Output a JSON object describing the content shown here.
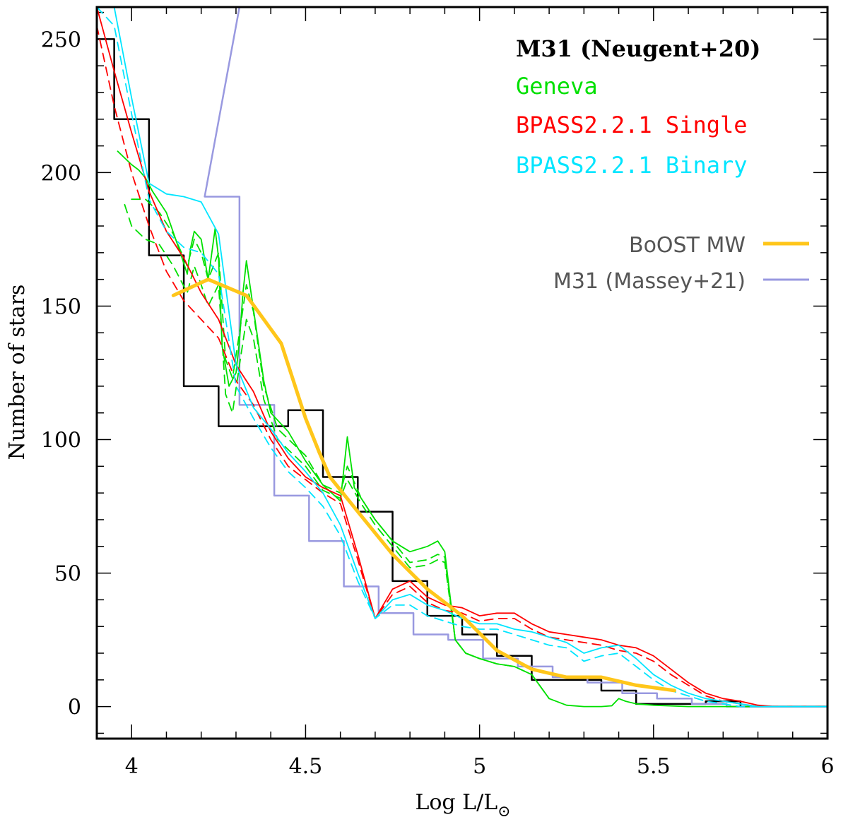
{
  "chart_data": {
    "type": "line",
    "xlabel": "Log L/L",
    "xlabel_sub": "⊙",
    "ylabel": "Number of stars",
    "xlim": [
      3.9,
      6.0
    ],
    "ylim": [
      -12,
      262
    ],
    "xticks": [
      4,
      4.5,
      5,
      5.5,
      6
    ],
    "xtick_labels": [
      "4",
      "4.5",
      "5",
      "5.5",
      "6"
    ],
    "yticks": [
      0,
      50,
      100,
      150,
      200,
      250
    ],
    "ytick_labels": [
      "0",
      "50",
      "100",
      "150",
      "200",
      "250"
    ],
    "legend": [
      {
        "label": "M31 (Neugent+20)",
        "color": "#000000"
      },
      {
        "label": "Geneva",
        "color": "#00e000"
      },
      {
        "label": "BPASS2.2.1 Single",
        "color": "#ff0000"
      },
      {
        "label": "BPASS2.2.1 Binary",
        "color": "#00e5ff"
      },
      {
        "label": "BoOST MW",
        "color": "#ffc61a"
      },
      {
        "label": "M31 (Massey+21)",
        "color": "#9999e0"
      }
    ],
    "series": [
      {
        "name": "M31 (Neugent+20)",
        "color": "#000000",
        "style": "step",
        "width": 2.5,
        "bins": [
          [
            3.9,
            3.95,
            250
          ],
          [
            3.95,
            4.05,
            220
          ],
          [
            4.05,
            4.15,
            169
          ],
          [
            4.15,
            4.25,
            120
          ],
          [
            4.25,
            4.45,
            105
          ],
          [
            4.45,
            4.55,
            111
          ],
          [
            4.55,
            4.65,
            86
          ],
          [
            4.65,
            4.75,
            73
          ],
          [
            4.75,
            4.85,
            47
          ],
          [
            4.85,
            4.95,
            34
          ],
          [
            4.95,
            5.05,
            27
          ],
          [
            5.05,
            5.15,
            19
          ],
          [
            5.15,
            5.35,
            10
          ],
          [
            5.35,
            5.45,
            6
          ],
          [
            5.45,
            5.65,
            1
          ],
          [
            5.65,
            5.75,
            2
          ],
          [
            5.75,
            6.0,
            0
          ]
        ]
      },
      {
        "name": "M31 (Massey+21)",
        "color": "#9999e0",
        "style": "step",
        "width": 2.5,
        "bins": [
          [
            4.2,
            4.31,
            262
          ],
          [
            4.21,
            4.31,
            191
          ],
          [
            4.31,
            4.41,
            113
          ],
          [
            4.41,
            4.51,
            79
          ],
          [
            4.51,
            4.61,
            62
          ],
          [
            4.61,
            4.71,
            45
          ],
          [
            4.71,
            4.81,
            35
          ],
          [
            4.81,
            4.91,
            27
          ],
          [
            4.91,
            5.01,
            25
          ],
          [
            5.01,
            5.11,
            18
          ],
          [
            5.11,
            5.21,
            15
          ],
          [
            5.21,
            5.31,
            11
          ],
          [
            5.31,
            5.41,
            9
          ],
          [
            5.41,
            5.51,
            5
          ],
          [
            5.51,
            5.61,
            3
          ],
          [
            5.61,
            5.71,
            1
          ],
          [
            5.71,
            6.0,
            0
          ]
        ]
      },
      {
        "name": "BPASS2.2.1 Single",
        "color": "#ff0000",
        "style": "solid",
        "width": 1.8,
        "x": [
          3.9,
          3.95,
          4.0,
          4.05,
          4.1,
          4.15,
          4.2,
          4.25,
          4.3,
          4.35,
          4.4,
          4.45,
          4.5,
          4.55,
          4.6,
          4.65,
          4.7,
          4.75,
          4.8,
          4.85,
          4.9,
          4.95,
          5.0,
          5.05,
          5.1,
          5.15,
          5.2,
          5.25,
          5.3,
          5.35,
          5.4,
          5.45,
          5.5,
          5.55,
          5.6,
          5.65,
          5.7,
          5.75,
          5.8,
          5.85,
          5.9,
          6.0
        ],
        "y": [
          262,
          238,
          215,
          193,
          178,
          168,
          155,
          145,
          128,
          118,
          103,
          93,
          86,
          82,
          79,
          57,
          33,
          44,
          47,
          41,
          38,
          37,
          34,
          35,
          35,
          31,
          28,
          27,
          26,
          25,
          23,
          22,
          19,
          14,
          9,
          5,
          3,
          2,
          0.5,
          0,
          0,
          0
        ]
      },
      {
        "name": "BPASS2.2.1 Single (dashed)",
        "color": "#ff0000",
        "style": "dashed",
        "width": 1.8,
        "x": [
          3.9,
          3.95,
          4.0,
          4.05,
          4.1,
          4.15,
          4.2,
          4.25,
          4.3,
          4.35,
          4.4,
          4.45,
          4.5,
          4.55,
          4.6,
          4.65,
          4.7,
          4.75,
          4.8,
          4.85,
          4.9,
          4.95,
          5.0,
          5.05,
          5.1,
          5.15,
          5.2,
          5.25,
          5.3,
          5.35,
          5.4,
          5.45,
          5.5,
          5.55,
          5.6,
          5.65,
          5.7,
          5.75,
          5.8,
          5.85,
          6.0
        ],
        "y": [
          255,
          225,
          200,
          180,
          163,
          152,
          145,
          138,
          122,
          113,
          100,
          90,
          85,
          80,
          76,
          55,
          33,
          42,
          45,
          39,
          36,
          35,
          32,
          33,
          33,
          29,
          26,
          25,
          24,
          23,
          21,
          20,
          17,
          12,
          8,
          4,
          2,
          1,
          0,
          0,
          0
        ]
      },
      {
        "name": "BPASS2.2.1 Binary",
        "color": "#00e5ff",
        "style": "solid",
        "width": 1.8,
        "x": [
          3.9,
          3.95,
          4.0,
          4.05,
          4.1,
          4.15,
          4.2,
          4.25,
          4.3,
          4.35,
          4.4,
          4.45,
          4.5,
          4.55,
          4.6,
          4.65,
          4.7,
          4.75,
          4.8,
          4.85,
          4.9,
          4.95,
          5.0,
          5.05,
          5.1,
          5.15,
          5.2,
          5.25,
          5.3,
          5.35,
          5.4,
          5.45,
          5.5,
          5.55,
          5.6,
          5.65,
          5.7,
          5.75,
          5.8,
          5.85,
          6.0
        ],
        "y": [
          290,
          262,
          228,
          196,
          192,
          191,
          189,
          177,
          128,
          112,
          104,
          95,
          88,
          80,
          68,
          50,
          33,
          40,
          42,
          38,
          36,
          33,
          31,
          31,
          29,
          28,
          26,
          24,
          20,
          22,
          23,
          18,
          12,
          8,
          5,
          3,
          2,
          1,
          0,
          0,
          0
        ]
      },
      {
        "name": "BPASS2.2.1 Binary (dashed)",
        "color": "#00e5ff",
        "style": "dashed",
        "width": 1.8,
        "x": [
          3.9,
          3.95,
          4.0,
          4.05,
          4.1,
          4.15,
          4.2,
          4.25,
          4.3,
          4.35,
          4.4,
          4.45,
          4.5,
          4.55,
          4.6,
          4.65,
          4.7,
          4.75,
          4.8,
          4.85,
          4.9,
          4.95,
          5.0,
          5.05,
          5.1,
          5.15,
          5.2,
          5.25,
          5.3,
          5.35,
          5.4,
          5.45,
          5.5,
          5.55,
          5.6,
          5.65,
          5.7,
          5.75,
          5.8,
          5.85,
          6.0
        ],
        "y": [
          285,
          255,
          222,
          190,
          178,
          172,
          170,
          162,
          120,
          108,
          97,
          88,
          82,
          75,
          64,
          47,
          33,
          38,
          38,
          34,
          32,
          30,
          29,
          29,
          27,
          25,
          23,
          22,
          17,
          19,
          20,
          15,
          10,
          6,
          4,
          2,
          1,
          0,
          0,
          0,
          0
        ]
      },
      {
        "name": "Geneva",
        "color": "#00e000",
        "style": "solid",
        "width": 1.8,
        "x": [
          3.96,
          4.0,
          4.02,
          4.04,
          4.06,
          4.1,
          4.14,
          4.16,
          4.17,
          4.18,
          4.2,
          4.22,
          4.24,
          4.25,
          4.26,
          4.28,
          4.3,
          4.31,
          4.32,
          4.33,
          4.34,
          4.36,
          4.38,
          4.4,
          4.45,
          4.5,
          4.55,
          4.6,
          4.62,
          4.64,
          4.66,
          4.7,
          4.75,
          4.8,
          4.85,
          4.88,
          4.9,
          4.93,
          4.96,
          5.0,
          5.05,
          5.1,
          5.15,
          5.2,
          5.25,
          5.3,
          5.35,
          5.38,
          5.4,
          5.42,
          5.45,
          5.5,
          5.6,
          5.7,
          5.8,
          6.0
        ],
        "y": [
          208,
          203,
          201,
          198,
          193,
          185,
          170,
          162,
          172,
          178,
          175,
          160,
          179,
          168,
          135,
          120,
          125,
          137,
          155,
          167,
          158,
          140,
          122,
          110,
          103,
          92,
          83,
          77,
          101,
          82,
          78,
          70,
          62,
          58,
          60,
          62,
          58,
          25,
          20,
          18,
          16,
          15,
          12,
          3,
          0.5,
          0,
          0,
          0.3,
          3,
          2,
          1,
          0.5,
          0,
          0,
          0,
          0
        ]
      },
      {
        "name": "Geneva (dashed 1)",
        "color": "#00e000",
        "style": "dashed",
        "width": 1.8,
        "x": [
          4.0,
          4.04,
          4.08,
          4.12,
          4.16,
          4.18,
          4.2,
          4.22,
          4.25,
          4.27,
          4.29,
          4.31,
          4.33,
          4.35,
          4.38,
          4.42,
          4.5,
          4.55,
          4.6,
          4.62,
          4.66,
          4.7,
          4.75,
          4.8,
          4.85,
          4.88,
          4.9,
          4.93,
          4.96,
          5.0,
          5.05,
          5.1,
          5.15,
          5.2
        ],
        "y": [
          190,
          190,
          185,
          177,
          165,
          175,
          170,
          160,
          170,
          130,
          123,
          140,
          158,
          148,
          120,
          104,
          94,
          83,
          80,
          90,
          78,
          70,
          62,
          54,
          55,
          57,
          56,
          25,
          20,
          18,
          16,
          15,
          12,
          3
        ]
      },
      {
        "name": "Geneva (dashed 2)",
        "color": "#00e000",
        "style": "dashed",
        "width": 1.8,
        "x": [
          3.98,
          4.0,
          4.04,
          4.08,
          4.12,
          4.16,
          4.18,
          4.2,
          4.22,
          4.25,
          4.27,
          4.29,
          4.31,
          4.33,
          4.35,
          4.38,
          4.42,
          4.5,
          4.55,
          4.6,
          4.62,
          4.66,
          4.7,
          4.75,
          4.8,
          4.85,
          4.88,
          4.9,
          4.93,
          4.96,
          5.0
        ],
        "y": [
          188,
          180,
          175,
          173,
          165,
          155,
          165,
          158,
          150,
          158,
          117,
          110,
          128,
          145,
          138,
          115,
          100,
          90,
          81,
          78,
          85,
          76,
          68,
          60,
          52,
          53,
          55,
          54,
          25,
          20,
          18
        ]
      },
      {
        "name": "BoOST MW",
        "color": "#ffc61a",
        "style": "solid",
        "width": 5,
        "x": [
          4.12,
          4.22,
          4.33,
          4.43,
          4.5,
          4.54,
          4.57,
          4.65,
          4.75,
          4.85,
          4.95,
          5.05,
          5.15,
          5.25,
          5.35,
          5.45,
          5.56
        ],
        "y": [
          154,
          160,
          154,
          136,
          108,
          95,
          86,
          73,
          57,
          44,
          34,
          21,
          14,
          11,
          11,
          8,
          6
        ]
      }
    ]
  }
}
